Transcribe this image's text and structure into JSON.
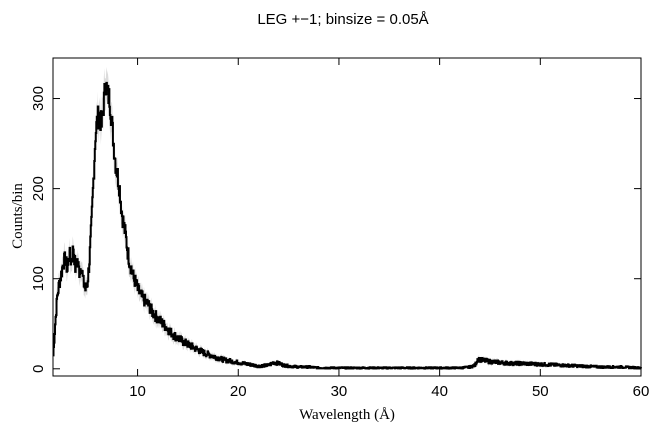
{
  "chart_data": {
    "type": "line",
    "title": "LEG +−1; binsize = 0.05Å",
    "xlabel": "Wavelength (Å)",
    "ylabel": "Counts/bin",
    "xlim": [
      1.6,
      60
    ],
    "ylim": [
      -8,
      345
    ],
    "xticks": [
      10,
      20,
      30,
      40,
      50,
      60
    ],
    "yticks": [
      0,
      100,
      200,
      300
    ],
    "grid": false,
    "legend": "none",
    "colors": {
      "series": "#000000",
      "error_band": "#bdbdbd"
    },
    "series": [
      {
        "x": [
          1.6,
          1.8,
          2.0,
          2.2,
          2.4,
          2.6,
          2.8,
          3.0,
          3.2,
          3.4,
          3.6,
          3.8,
          4.0,
          4.2,
          4.4,
          4.6,
          4.8,
          5.0,
          5.2,
          5.4,
          5.6,
          5.8,
          6.0,
          6.2,
          6.4,
          6.6,
          6.8,
          7.0,
          7.2,
          7.4,
          7.6,
          7.8,
          8.0,
          8.2,
          8.4,
          8.6,
          8.8,
          9.0,
          9.2,
          9.4,
          9.6,
          9.8,
          10.0,
          10.5,
          11.0,
          11.5,
          12.0,
          12.5,
          13.0,
          13.5,
          14.0,
          14.5,
          15.0,
          15.5,
          16.0,
          16.5,
          17.0,
          17.5,
          18.0,
          18.5,
          19.0,
          19.5,
          20.0,
          21.0,
          22.0,
          23.0,
          23.5,
          24.0,
          24.5,
          25.0,
          26.0,
          27.0,
          28.0,
          30.0,
          32.0,
          34.0,
          36.0,
          38.0,
          40.0,
          42.0,
          43.0,
          43.5,
          43.8,
          44.0,
          44.5,
          45.0,
          46.0,
          47.0,
          48.0,
          50.0,
          52.0,
          54.0,
          56.0,
          58.0,
          60.0
        ],
        "values": [
          15,
          50,
          80,
          95,
          105,
          118,
          122,
          110,
          128,
          118,
          135,
          112,
          120,
          108,
          115,
          96,
          88,
          95,
          120,
          160,
          210,
          260,
          278,
          282,
          270,
          292,
          318,
          305,
          300,
          278,
          250,
          228,
          215,
          200,
          175,
          160,
          148,
          130,
          118,
          110,
          100,
          96,
          88,
          78,
          72,
          62,
          56,
          50,
          44,
          38,
          34,
          30,
          27,
          24,
          21,
          18,
          16,
          14,
          12,
          10,
          9,
          8,
          7,
          5,
          3,
          4,
          7,
          6,
          4,
          3,
          2,
          2,
          1,
          1,
          1,
          1,
          1,
          1,
          1,
          1,
          2,
          4,
          12,
          10,
          9,
          8,
          7,
          6,
          6,
          5,
          4,
          3,
          2,
          2,
          1
        ]
      }
    ]
  }
}
